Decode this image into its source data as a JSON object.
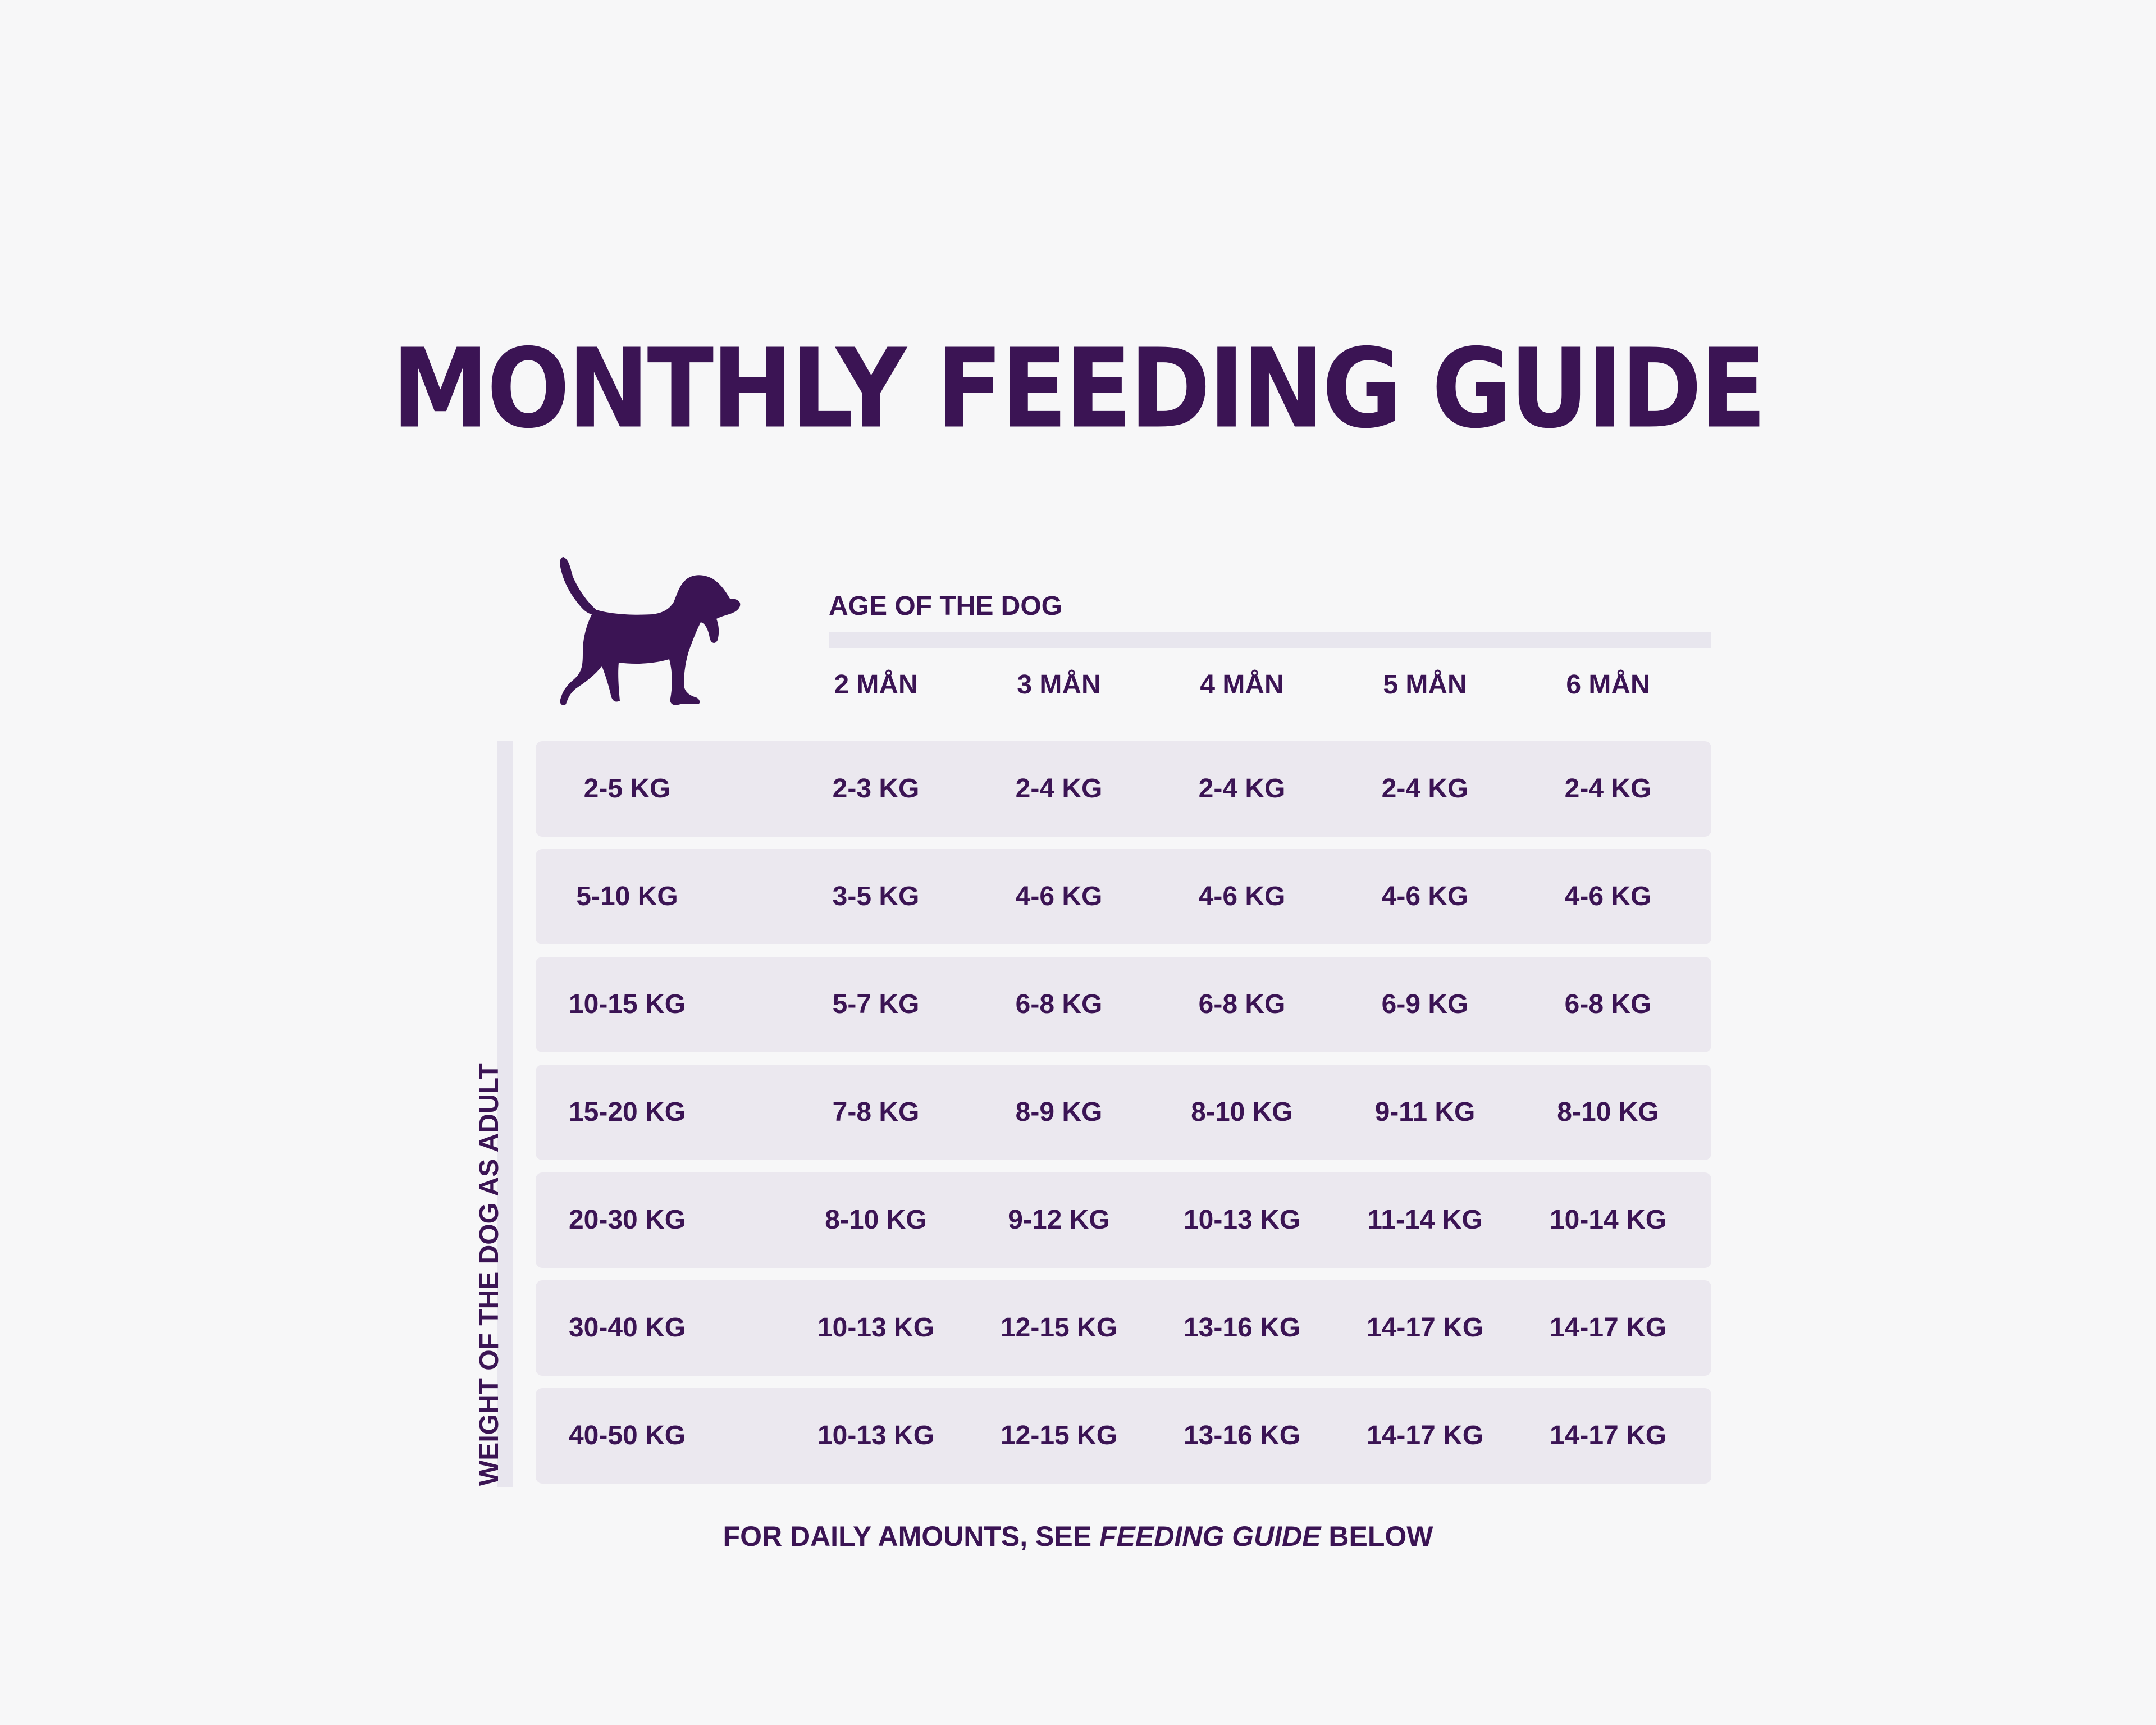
{
  "title": "MONTHLY FEEDING GUIDE",
  "icons": {
    "dog": "dog-silhouette-icon"
  },
  "colors": {
    "primary": "#3b1454",
    "row_background": "#ebe8ef",
    "bar": "#e8e6ee",
    "page_background": "#f7f7f8"
  },
  "table": {
    "age_label": "AGE OF THE DOG",
    "weight_label": "WEIGHT OF THE DOG AS ADULT",
    "columns": [
      "2 MÅN",
      "3 MÅN",
      "4 MÅN",
      "5 MÅN",
      "6 MÅN"
    ],
    "rows": [
      {
        "weight": "2-5 KG",
        "values": [
          "2-3 KG",
          "2-4 KG",
          "2-4 KG",
          "2-4 KG",
          "2-4 KG"
        ]
      },
      {
        "weight": "5-10 KG",
        "values": [
          "3-5 KG",
          "4-6 KG",
          "4-6 KG",
          "4-6 KG",
          "4-6 KG"
        ]
      },
      {
        "weight": "10-15 KG",
        "values": [
          "5-7 KG",
          "6-8 KG",
          "6-8 KG",
          "6-9 KG",
          "6-8 KG"
        ]
      },
      {
        "weight": "15-20 KG",
        "values": [
          "7-8 KG",
          "8-9 KG",
          "8-10 KG",
          "9-11 KG",
          "8-10 KG"
        ]
      },
      {
        "weight": "20-30 KG",
        "values": [
          "8-10 KG",
          "9-12 KG",
          "10-13 KG",
          "11-14 KG",
          "10-14 KG"
        ]
      },
      {
        "weight": "30-40 KG",
        "values": [
          "10-13 KG",
          "12-15 KG",
          "13-16 KG",
          "14-17 KG",
          "14-17 KG"
        ]
      },
      {
        "weight": "40-50 KG",
        "values": [
          "10-13 KG",
          "12-15 KG",
          "13-16 KG",
          "14-17 KG",
          "14-17 KG"
        ]
      }
    ]
  },
  "footnote": {
    "before": "FOR DAILY AMOUNTS, SEE ",
    "emphasis": "FEEDING GUIDE",
    "after": " BELOW"
  }
}
